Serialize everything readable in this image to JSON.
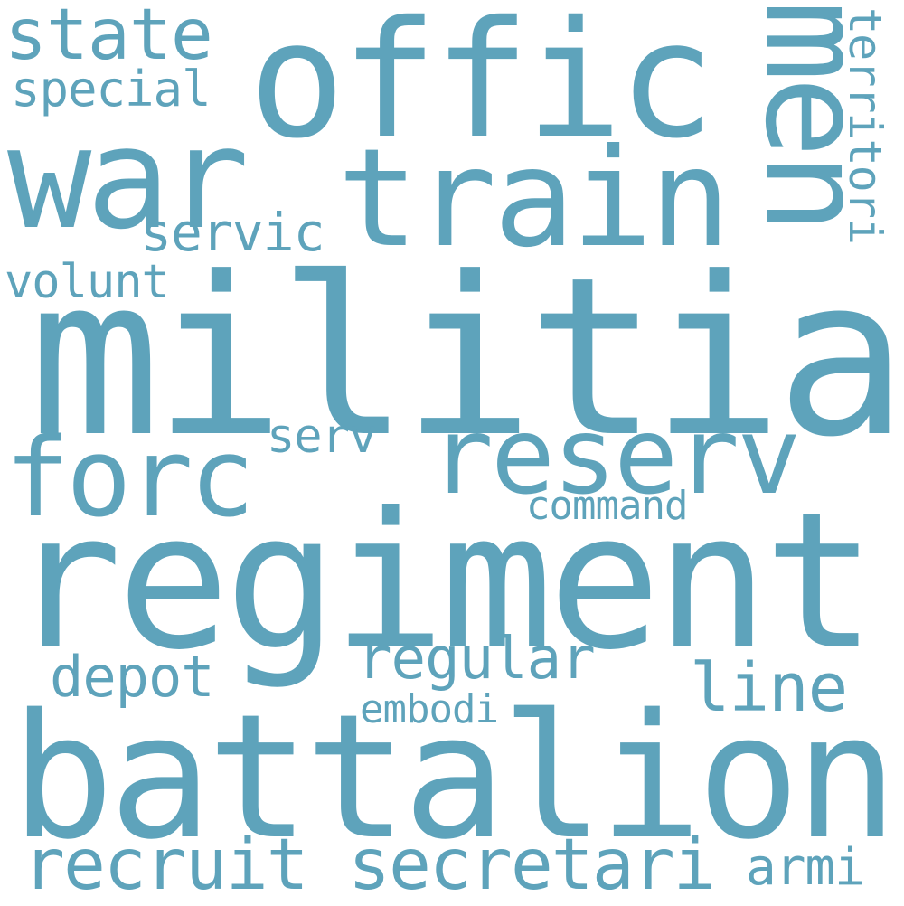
{
  "cloud": {
    "word_color": "#5ea3bb",
    "background_color": "#ffffff",
    "words": {
      "militia": "militia",
      "regiment": "regiment",
      "battalion": "battalion",
      "offic": "offic",
      "train": "train",
      "war": "war",
      "men": "men",
      "reserv": "reserv",
      "forc": "forc",
      "state": "state",
      "special": "special",
      "servic": "servic",
      "volunt": "volunt",
      "territori": "territori",
      "serv": "serv",
      "command": "command",
      "regular": "regular",
      "depot": "depot",
      "line": "line",
      "embodi": "embodi",
      "recruit": "recruit",
      "secretari": "secretari",
      "armi": "armi"
    }
  }
}
